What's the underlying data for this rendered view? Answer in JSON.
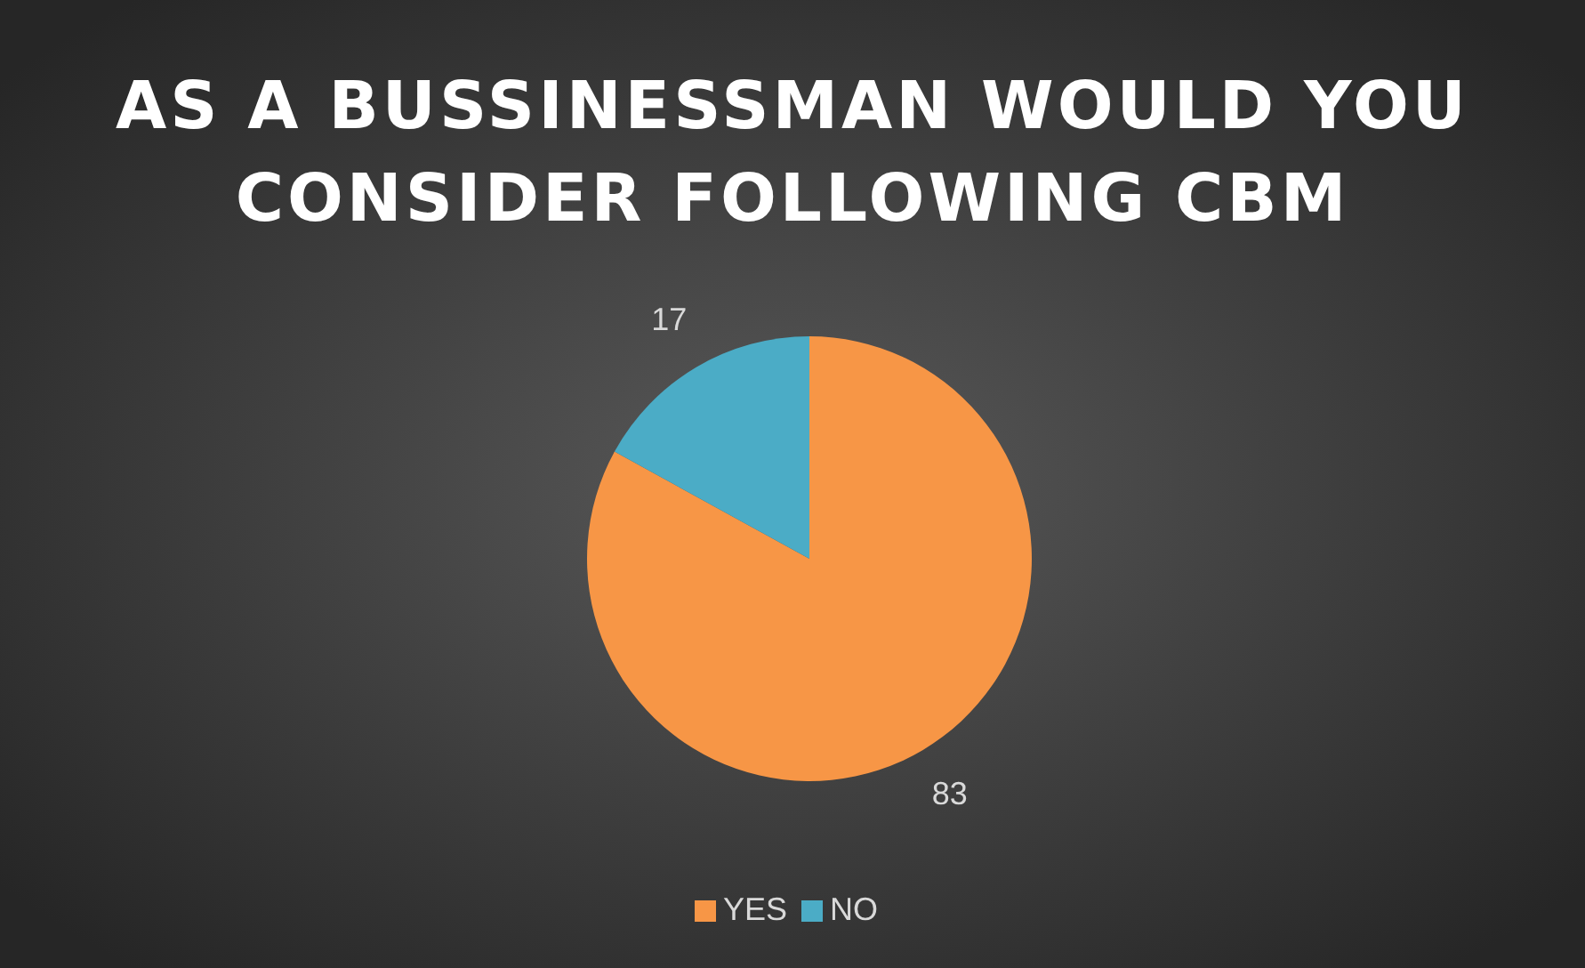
{
  "chart_data": {
    "type": "pie",
    "title": "AS A BUSSINESSMAN WOULD YOU CONSIDER FOLLOWING CBM",
    "categories": [
      "YES",
      "NO"
    ],
    "values": [
      83,
      17
    ],
    "colors": [
      "#f79646",
      "#4bacc6"
    ],
    "data_labels": true,
    "legend": "bottom"
  }
}
